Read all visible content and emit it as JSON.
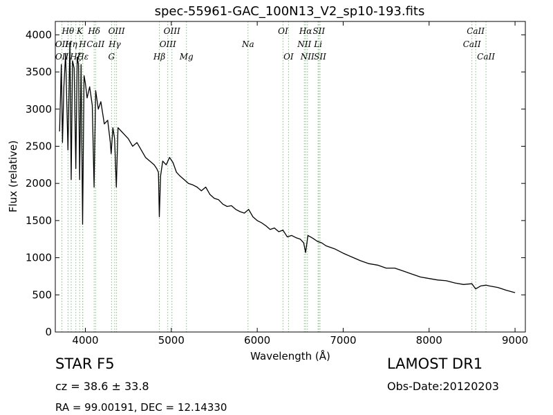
{
  "chart_data": {
    "type": "line",
    "title": "spec-55961-GAC_100N13_V2_sp10-193.fits",
    "xlabel": "Wavelength (Å)",
    "ylabel": "Flux (relative)",
    "xlim": [
      3650,
      9120
    ],
    "ylim": [
      0,
      4180
    ],
    "x_ticks": [
      4000,
      5000,
      6000,
      7000,
      8000,
      9000
    ],
    "y_ticks": [
      0,
      500,
      1000,
      1500,
      2000,
      2500,
      3000,
      3500,
      4000
    ],
    "grid": false,
    "series": [
      {
        "color": "#000000",
        "x": [
          3700,
          3720,
          3734,
          3750,
          3770,
          3797,
          3820,
          3835,
          3850,
          3870,
          3889,
          3905,
          3920,
          3933,
          3950,
          3968,
          3985,
          4000,
          4020,
          4050,
          4080,
          4101,
          4120,
          4150,
          4180,
          4220,
          4260,
          4290,
          4300,
          4320,
          4340,
          4360,
          4380,
          4420,
          4460,
          4500,
          4550,
          4600,
          4650,
          4700,
          4750,
          4800,
          4830,
          4850,
          4861,
          4875,
          4900,
          4940,
          4980,
          5020,
          5060,
          5100,
          5150,
          5200,
          5250,
          5300,
          5350,
          5400,
          5450,
          5500,
          5550,
          5600,
          5650,
          5700,
          5750,
          5800,
          5850,
          5900,
          5950,
          6000,
          6050,
          6100,
          6150,
          6200,
          6250,
          6300,
          6350,
          6400,
          6450,
          6500,
          6540,
          6563,
          6590,
          6650,
          6700,
          6750,
          6800,
          6900,
          7000,
          7100,
          7200,
          7300,
          7400,
          7500,
          7600,
          7700,
          7800,
          7900,
          8000,
          8100,
          8200,
          8300,
          8400,
          8498,
          8542,
          8600,
          8662,
          8700,
          8800,
          8900,
          9000
        ],
        "y": [
          2700,
          3600,
          2550,
          3300,
          3750,
          2450,
          3900,
          2050,
          3650,
          3550,
          2200,
          3700,
          3600,
          2050,
          3600,
          1450,
          3450,
          3350,
          3150,
          3300,
          3050,
          1950,
          3250,
          3000,
          3100,
          2800,
          2850,
          2550,
          2400,
          2750,
          2600,
          1950,
          2750,
          2700,
          2650,
          2600,
          2500,
          2550,
          2450,
          2350,
          2300,
          2250,
          2200,
          2150,
          1550,
          2100,
          2300,
          2250,
          2350,
          2280,
          2150,
          2100,
          2050,
          2000,
          1980,
          1950,
          1900,
          1950,
          1850,
          1800,
          1780,
          1720,
          1690,
          1700,
          1650,
          1620,
          1600,
          1650,
          1550,
          1500,
          1470,
          1430,
          1380,
          1400,
          1350,
          1370,
          1280,
          1300,
          1270,
          1250,
          1200,
          1070,
          1300,
          1260,
          1220,
          1200,
          1160,
          1120,
          1060,
          1010,
          960,
          920,
          900,
          860,
          860,
          820,
          780,
          740,
          720,
          700,
          690,
          660,
          640,
          650,
          580,
          620,
          630,
          620,
          600,
          560,
          530
        ]
      }
    ],
    "lines": [
      {
        "name": "OII",
        "x": 3727
      },
      {
        "name": "Hθ",
        "x": 3798
      },
      {
        "name": "Hη",
        "x": 3835
      },
      {
        "name": "Hζ",
        "x": 3889
      },
      {
        "name": "K",
        "x": 3934
      },
      {
        "name": "H",
        "x": 3968
      },
      {
        "name": "Hε",
        "x": 3970
      },
      {
        "name": "Hδ",
        "x": 4102
      },
      {
        "name": "CaII",
        "x": 4119
      },
      {
        "name": "G",
        "x": 4304
      },
      {
        "name": "Hγ",
        "x": 4341
      },
      {
        "name": "OIII",
        "x": 4363
      },
      {
        "name": "Hβ",
        "x": 4861
      },
      {
        "name": "OIII",
        "x": 4959
      },
      {
        "name": "OIII",
        "x": 5007
      },
      {
        "name": "Mg",
        "x": 5176
      },
      {
        "name": "Na",
        "x": 5893
      },
      {
        "name": "OI",
        "x": 6300
      },
      {
        "name": "OI",
        "x": 6364
      },
      {
        "name": "NII",
        "x": 6548
      },
      {
        "name": "Hα",
        "x": 6563
      },
      {
        "name": "NII",
        "x": 6584
      },
      {
        "name": "Li",
        "x": 6708
      },
      {
        "name": "SII",
        "x": 6717
      },
      {
        "name": "SII",
        "x": 6731
      },
      {
        "name": "CaII",
        "x": 8498
      },
      {
        "name": "CaII",
        "x": 8542
      },
      {
        "name": "CaII",
        "x": 8662
      }
    ],
    "line_labels": [
      {
        "text": "OII",
        "x": 3727,
        "row": 3
      },
      {
        "text": "OII",
        "x": 3727,
        "row": 2
      },
      {
        "text": "Hθ",
        "x": 3798,
        "row": 1
      },
      {
        "text": "Hη",
        "x": 3835,
        "row": 2
      },
      {
        "text": "Hζ",
        "x": 3889,
        "row": 3
      },
      {
        "text": "K",
        "x": 3934,
        "row": 1
      },
      {
        "text": "H",
        "x": 3968,
        "row": 2
      },
      {
        "text": "Hε",
        "x": 3970,
        "row": 3
      },
      {
        "text": "Hδ",
        "x": 4102,
        "row": 1
      },
      {
        "text": "CaII",
        "x": 4119,
        "row": 2
      },
      {
        "text": "G",
        "x": 4304,
        "row": 3
      },
      {
        "text": "Hγ",
        "x": 4341,
        "row": 2
      },
      {
        "text": "OIII",
        "x": 4363,
        "row": 1
      },
      {
        "text": "Hβ",
        "x": 4861,
        "row": 3
      },
      {
        "text": "OIII",
        "x": 4959,
        "row": 2
      },
      {
        "text": "OIII",
        "x": 5007,
        "row": 1
      },
      {
        "text": "Mg",
        "x": 5176,
        "row": 3
      },
      {
        "text": "Na",
        "x": 5893,
        "row": 2
      },
      {
        "text": "OI",
        "x": 6300,
        "row": 1
      },
      {
        "text": "OI",
        "x": 6364,
        "row": 3
      },
      {
        "text": "NII",
        "x": 6548,
        "row": 2
      },
      {
        "text": "Hα",
        "x": 6563,
        "row": 1
      },
      {
        "text": "NII",
        "x": 6584,
        "row": 3
      },
      {
        "text": "Li",
        "x": 6708,
        "row": 2
      },
      {
        "text": "SII",
        "x": 6717,
        "row": 1
      },
      {
        "text": "SII",
        "x": 6731,
        "row": 3
      },
      {
        "text": "CaII",
        "x": 8498,
        "row": 2
      },
      {
        "text": "CaII",
        "x": 8542,
        "row": 1
      },
      {
        "text": "CaII",
        "x": 8662,
        "row": 3
      }
    ],
    "line_color": "#7fbf7f"
  },
  "info": {
    "classification": "STAR   F5",
    "redshift": "cz = 38.6  ± 33.8",
    "coordinates": "RA = 99.00191, DEC = 12.14330",
    "survey": "LAMOST DR1",
    "obs_date": "Obs-Date:20120203"
  }
}
